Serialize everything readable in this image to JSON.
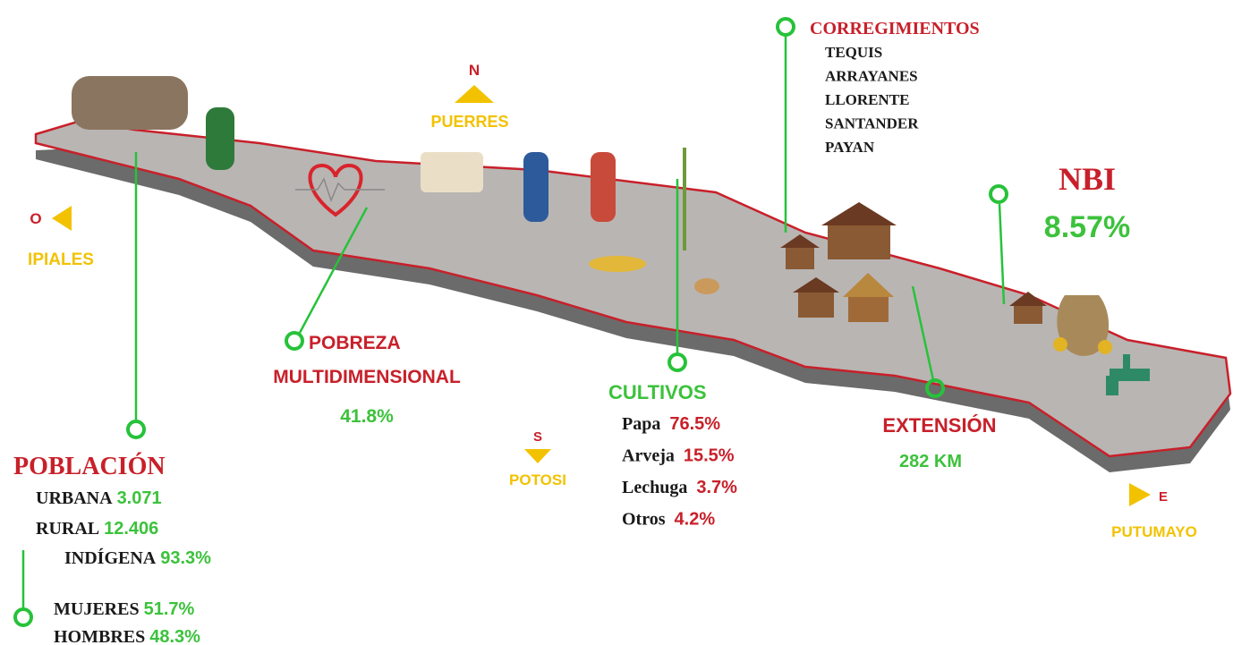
{
  "compass": {
    "north": {
      "letter": "N",
      "place": "PUERRES"
    },
    "west": {
      "letter": "O",
      "place": "IPIALES"
    },
    "south": {
      "letter": "S",
      "place": "POTOSI"
    },
    "east": {
      "letter": "E",
      "place": "PUTUMAYO"
    }
  },
  "corregimientos": {
    "title": "CORREGIMIENTOS",
    "items": [
      "TEQUIS",
      "ARRAYANES",
      "LLORENTE",
      "SANTANDER",
      "PAYAN"
    ]
  },
  "nbi": {
    "title": "NBI",
    "value": "8.57%"
  },
  "pobreza": {
    "title": [
      "POBREZA",
      "MULTIDIMENSIONAL"
    ],
    "value": "41.8%"
  },
  "cultivos": {
    "title": "CULTIVOS",
    "items": [
      {
        "name": "Papa",
        "value": "76.5%"
      },
      {
        "name": "Arveja",
        "value": "15.5%"
      },
      {
        "name": "Lechuga",
        "value": "3.7%"
      },
      {
        "name": "Otros",
        "value": "4.2%"
      }
    ]
  },
  "extension": {
    "title": "EXTENSIÓN",
    "value": "282 KM"
  },
  "poblacion": {
    "title": "POBLACIÓN",
    "items": [
      {
        "label": "URBANA",
        "value": "3.071"
      },
      {
        "label": "RURAL",
        "value": "12.406"
      },
      {
        "label": "INDÍGENA",
        "value": "93.3%"
      },
      {
        "label": "MUJERES",
        "value": "51.7%"
      },
      {
        "label": "HOMBRES",
        "value": "48.3%"
      }
    ]
  }
}
